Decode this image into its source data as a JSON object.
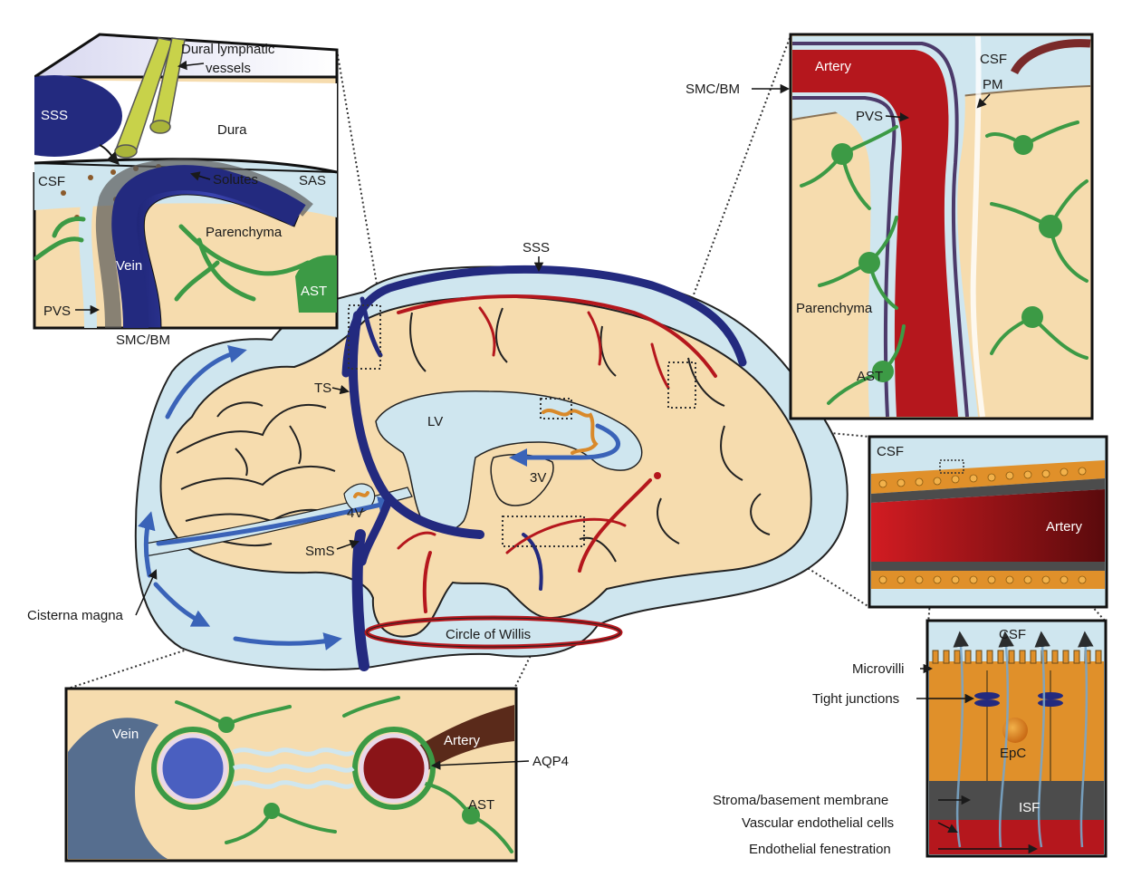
{
  "colors": {
    "brain": "#f6dcae",
    "csf": "#cfe6ef",
    "vein": "#232a7f",
    "artery": "#b5171d",
    "astrocyte": "#3c9a45",
    "choroid": "#d9892a",
    "epithelium": "#e0902a",
    "stroma": "#4c4c4c",
    "flow_arrow": "#3a63b8"
  },
  "panels": {
    "dura": {
      "dural_lymphatic": "Dural lymphatic",
      "vessels": "vessels",
      "sss": "SSS",
      "dura": "Dura",
      "csf": "CSF",
      "solutes": "Solutes",
      "sas": "SAS",
      "parenchyma": "Parenchyma",
      "vein": "Vein",
      "ast": "AST",
      "pvs": "PVS",
      "smc_bm": "SMC/BM"
    },
    "artery_detail": {
      "artery": "Artery",
      "csf": "CSF",
      "smc_bm": "SMC/BM",
      "pm": "PM",
      "pvs": "PVS",
      "parenchyma": "Parenchyma",
      "ast": "AST"
    },
    "main": {
      "sss": "SSS",
      "ts": "TS",
      "lv": "LV",
      "v3": "3V",
      "v4": "4V",
      "sms": "SmS",
      "cisterna": "Cisterna magna",
      "willis": "Circle of Willis"
    },
    "choroid": {
      "csf": "CSF",
      "artery": "Artery"
    },
    "epithelium": {
      "csf": "CSF",
      "microvilli": "Microvilli",
      "tight": "Tight junctions",
      "epc": "EpC",
      "stroma": "Stroma/basement membrane",
      "isf": "ISF",
      "endothelial": "Vascular endothelial cells",
      "fenestration": "Endothelial fenestration"
    },
    "cross_section": {
      "vein": "Vein",
      "artery": "Artery",
      "aqp4": "AQP4",
      "ast": "AST"
    }
  }
}
